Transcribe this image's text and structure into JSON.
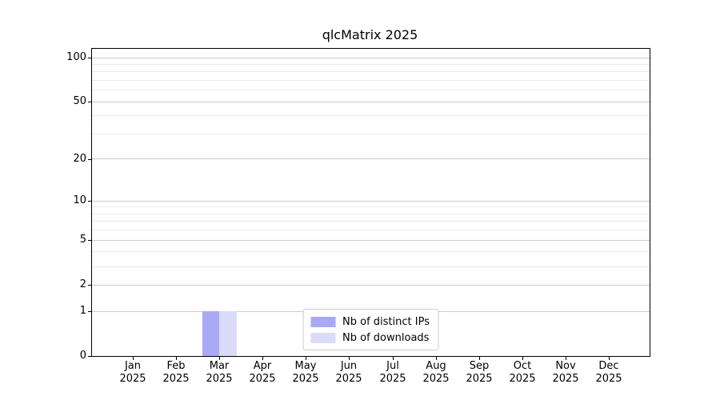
{
  "title": "qlcMatrix 2025",
  "chart_data": {
    "type": "bar",
    "title": "qlcMatrix 2025",
    "categories": [
      "Jan",
      "Feb",
      "Mar",
      "Apr",
      "May",
      "Jun",
      "Jul",
      "Aug",
      "Sep",
      "Oct",
      "Nov",
      "Dec"
    ],
    "x_year_label": "2025",
    "series": [
      {
        "name": "Nb of distinct IPs",
        "color": "#a9a9f6",
        "values": [
          0,
          0,
          1,
          0,
          0,
          0,
          0,
          0,
          0,
          0,
          0,
          0
        ]
      },
      {
        "name": "Nb of downloads",
        "color": "#d9dbf9",
        "values": [
          0,
          0,
          1,
          0,
          0,
          0,
          0,
          0,
          0,
          0,
          0,
          0
        ]
      }
    ],
    "y_scale": "log1p",
    "y_major_ticks": [
      0,
      1,
      2,
      5,
      10,
      20,
      50,
      100
    ],
    "y_tick_labels": [
      "0",
      "1",
      "2",
      "5",
      "10",
      "20",
      "50",
      "100"
    ],
    "y_minor_ticks": [
      3,
      4,
      6,
      7,
      8,
      9,
      30,
      40,
      60,
      70,
      80,
      90
    ],
    "ylim": [
      0,
      115
    ],
    "grid": "horizontal",
    "legend_position": "lower center",
    "bar_width_fraction": 0.4
  },
  "legend": {
    "items": [
      {
        "label": "Nb of distinct IPs"
      },
      {
        "label": "Nb of downloads"
      }
    ]
  },
  "colors": {
    "background": "#ffffff",
    "axis": "#000000",
    "grid_major": "#cccccc",
    "grid_minor": "#ebebeb",
    "legend_border": "#cccccc",
    "series_distinct_ips": "#a9a9f6",
    "series_downloads": "#d9dbf9",
    "text": "#000000"
  }
}
